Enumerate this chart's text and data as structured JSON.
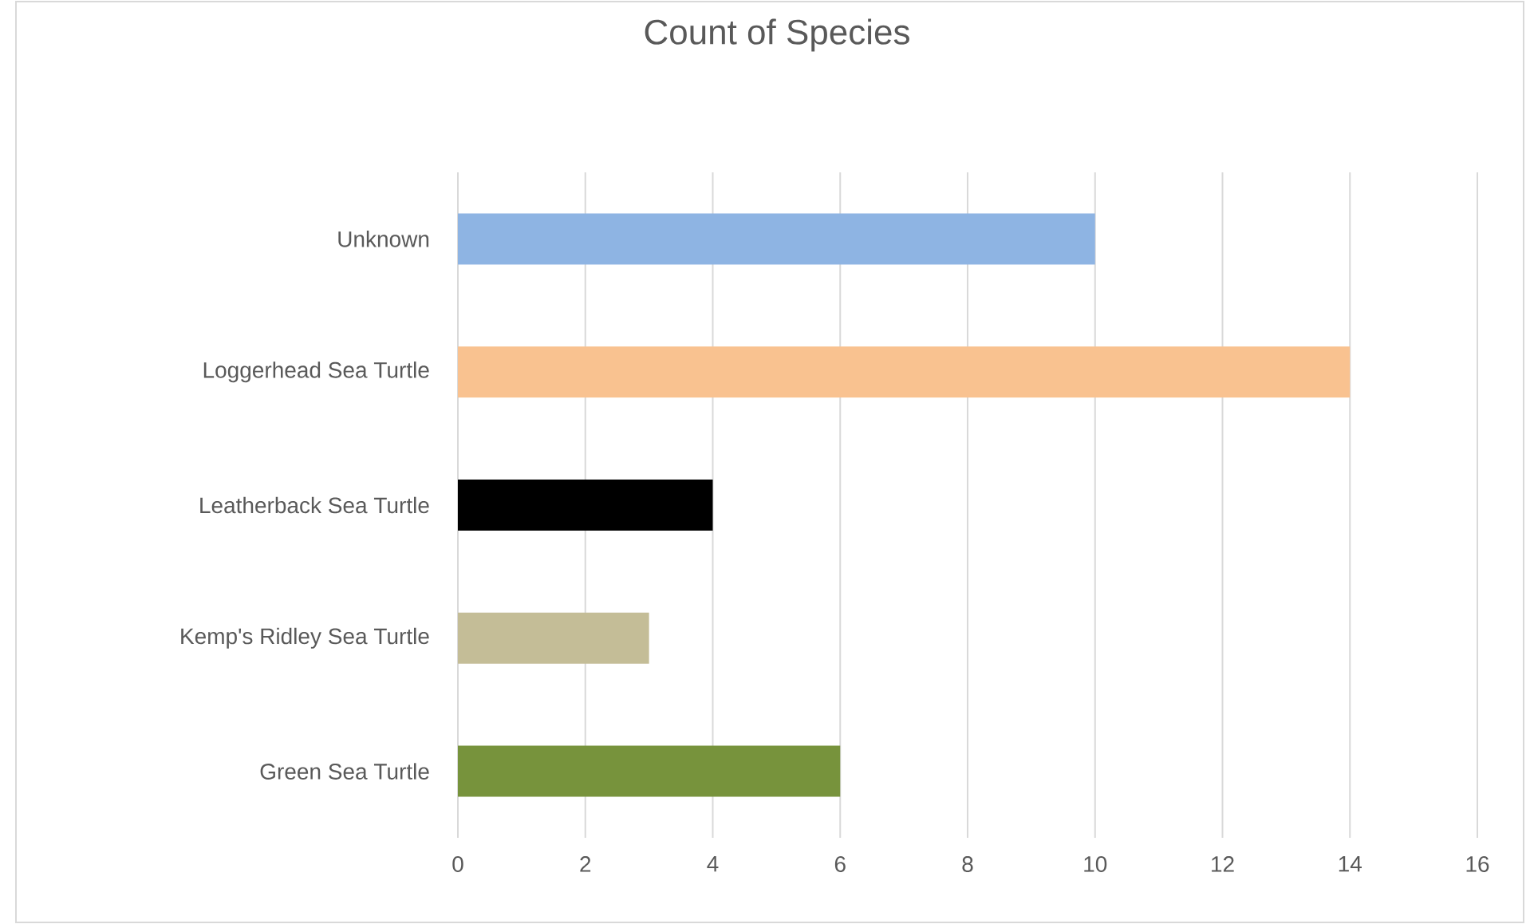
{
  "chart_data": {
    "type": "bar",
    "orientation": "horizontal",
    "title": "Count of Species",
    "categories": [
      "Unknown",
      "Loggerhead Sea Turtle",
      "Leatherback Sea Turtle",
      "Kemp's Ridley Sea Turtle",
      "Green Sea Turtle"
    ],
    "values": [
      10,
      14,
      4,
      3,
      6
    ],
    "colors": [
      "#8eb4e3",
      "#f9c290",
      "#000000",
      "#c4bd97",
      "#77933c"
    ],
    "xlim": [
      0,
      16
    ],
    "xticks": [
      0,
      2,
      4,
      6,
      8,
      10,
      12,
      14,
      16
    ],
    "grid": "x"
  }
}
